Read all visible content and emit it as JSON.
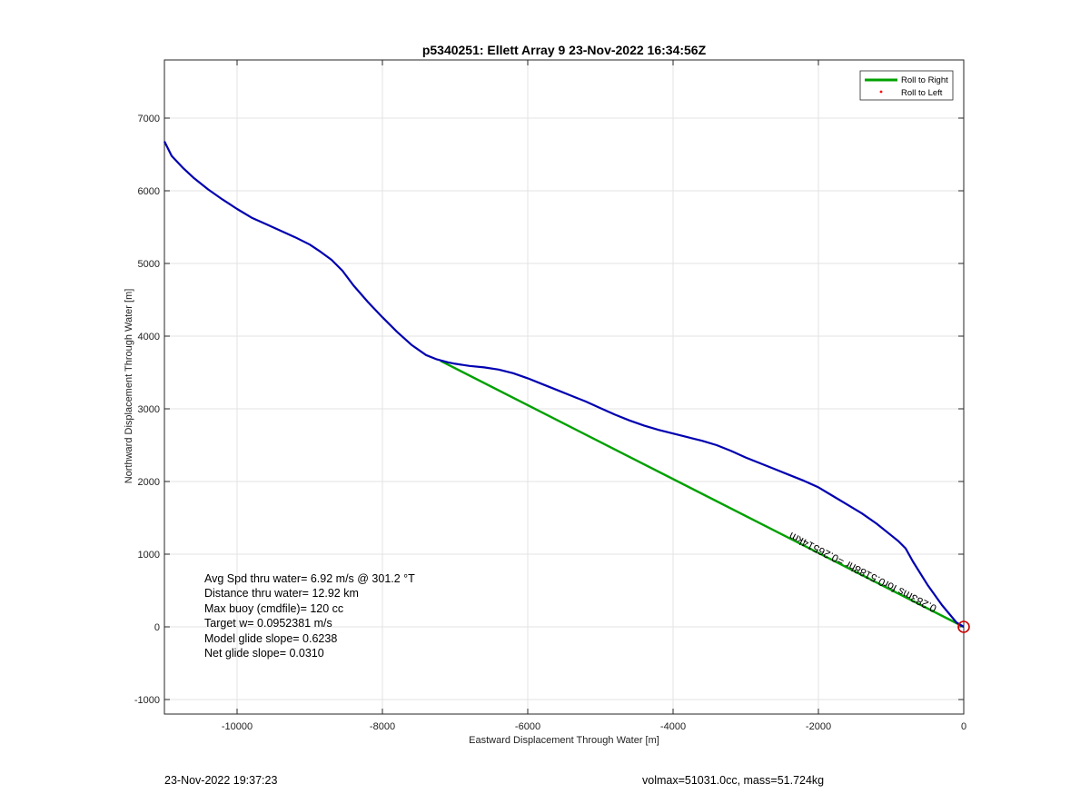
{
  "chart_data": {
    "type": "line",
    "title": "p5340251: Ellett Array 9 23-Nov-2022 16:34:56Z",
    "xlabel": "Eastward Displacement Through Water [m]",
    "ylabel": "Northward Displacement Through Water [m]",
    "xlim": [
      -11000,
      0
    ],
    "ylim": [
      -1200,
      7800
    ],
    "xticks": [
      -10000,
      -8000,
      -6000,
      -4000,
      -2000,
      0
    ],
    "yticks": [
      -1000,
      0,
      1000,
      2000,
      3000,
      4000,
      5000,
      6000,
      7000
    ],
    "xtick_labels": [
      "-10000",
      "-8000",
      "-6000",
      "-4000",
      "-2000",
      "0"
    ],
    "ytick_labels": [
      "-1000",
      "0",
      "1000",
      "2000",
      "3000",
      "4000",
      "5000",
      "6000",
      "7000"
    ],
    "grid": true,
    "legend_position": "top-right",
    "legend": [
      {
        "name": "Roll to Right",
        "color": "#00a000",
        "style": "line"
      },
      {
        "name": "Roll to Left",
        "color": "#ff0000",
        "style": "dot"
      }
    ],
    "series": [
      {
        "name": "track",
        "color": "#0000b0",
        "x": [
          -11000,
          -10900,
          -10750,
          -10600,
          -10400,
          -10200,
          -10000,
          -9800,
          -9600,
          -9400,
          -9200,
          -9000,
          -8850,
          -8700,
          -8550,
          -8400,
          -8200,
          -8000,
          -7800,
          -7600,
          -7400,
          -7250,
          -7100,
          -7000,
          -6800,
          -6600,
          -6400,
          -6200,
          -6000,
          -5800,
          -5600,
          -5400,
          -5200,
          -5000,
          -4800,
          -4600,
          -4400,
          -4200,
          -4000,
          -3800,
          -3600,
          -3400,
          -3200,
          -3000,
          -2800,
          -2600,
          -2400,
          -2200,
          -2000,
          -1800,
          -1600,
          -1400,
          -1200,
          -1000,
          -900,
          -800,
          -700,
          -500,
          -300,
          -100,
          0
        ],
        "y": [
          6680,
          6480,
          6320,
          6180,
          6020,
          5880,
          5750,
          5630,
          5540,
          5450,
          5360,
          5260,
          5160,
          5050,
          4900,
          4700,
          4470,
          4260,
          4060,
          3880,
          3740,
          3680,
          3640,
          3620,
          3590,
          3570,
          3540,
          3490,
          3420,
          3340,
          3260,
          3180,
          3100,
          3010,
          2920,
          2840,
          2770,
          2710,
          2660,
          2610,
          2560,
          2500,
          2420,
          2330,
          2250,
          2170,
          2090,
          2010,
          1920,
          1800,
          1680,
          1560,
          1420,
          1260,
          1180,
          1080,
          900,
          580,
          300,
          60,
          0
        ]
      },
      {
        "name": "Roll to Right",
        "color": "#00a000",
        "x": [
          -7200,
          0
        ],
        "y": [
          3660,
          0
        ]
      }
    ],
    "segment_label": "0.283ms for0.5188hr =0.26514km",
    "start_marker": {
      "x": 0,
      "y": 0,
      "color": "#cc0000"
    },
    "annotations": [
      "Avg Spd thru water=  6.92 m/s @ 301.2 °T",
      "Distance thru water= 12.92 km",
      "Max buoy (cmdfile)= 120 cc",
      "Target w= 0.0952381 m/s",
      "Model glide slope= 0.6238",
      "Net glide slope= 0.0310"
    ]
  },
  "footer": {
    "timestamp": "23-Nov-2022 19:37:23",
    "info": "volmax=51031.0cc, mass=51.724kg"
  }
}
